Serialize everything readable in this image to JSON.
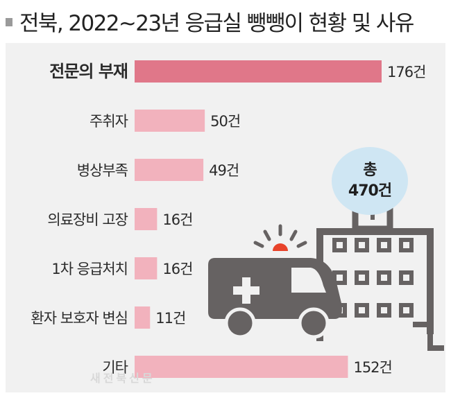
{
  "title": "전북, 2022~23년 응급실 뺑뺑이 현황 및 사유",
  "total": {
    "line1": "총",
    "line2": "470건"
  },
  "watermark": "새전북신문",
  "colors": {
    "highlight_bar": "#e07789",
    "bar": "#f2b2bd",
    "panel": "#f1f1f1",
    "badge": "#cfe6f3",
    "illustration": "#666262"
  },
  "icons": [
    "ambulance-icon",
    "hospital-icon",
    "siren-light-icon"
  ],
  "chart_data": {
    "type": "bar",
    "orientation": "horizontal",
    "title": "전북, 2022~23년 응급실 뺑뺑이 현황 및 사유",
    "categories": [
      "전문의 부재",
      "주취자",
      "병상부족",
      "의료장비 고장",
      "1차 응급처치",
      "환자 보호자 변심",
      "기타"
    ],
    "values": [
      176,
      50,
      49,
      16,
      16,
      11,
      152
    ],
    "value_labels": [
      "176건",
      "50건",
      "49건",
      "16건",
      "16건",
      "11건",
      "152건"
    ],
    "unit": "건",
    "highlight_index": 0,
    "xlim": [
      0,
      176
    ],
    "grid": false,
    "legend": false
  }
}
